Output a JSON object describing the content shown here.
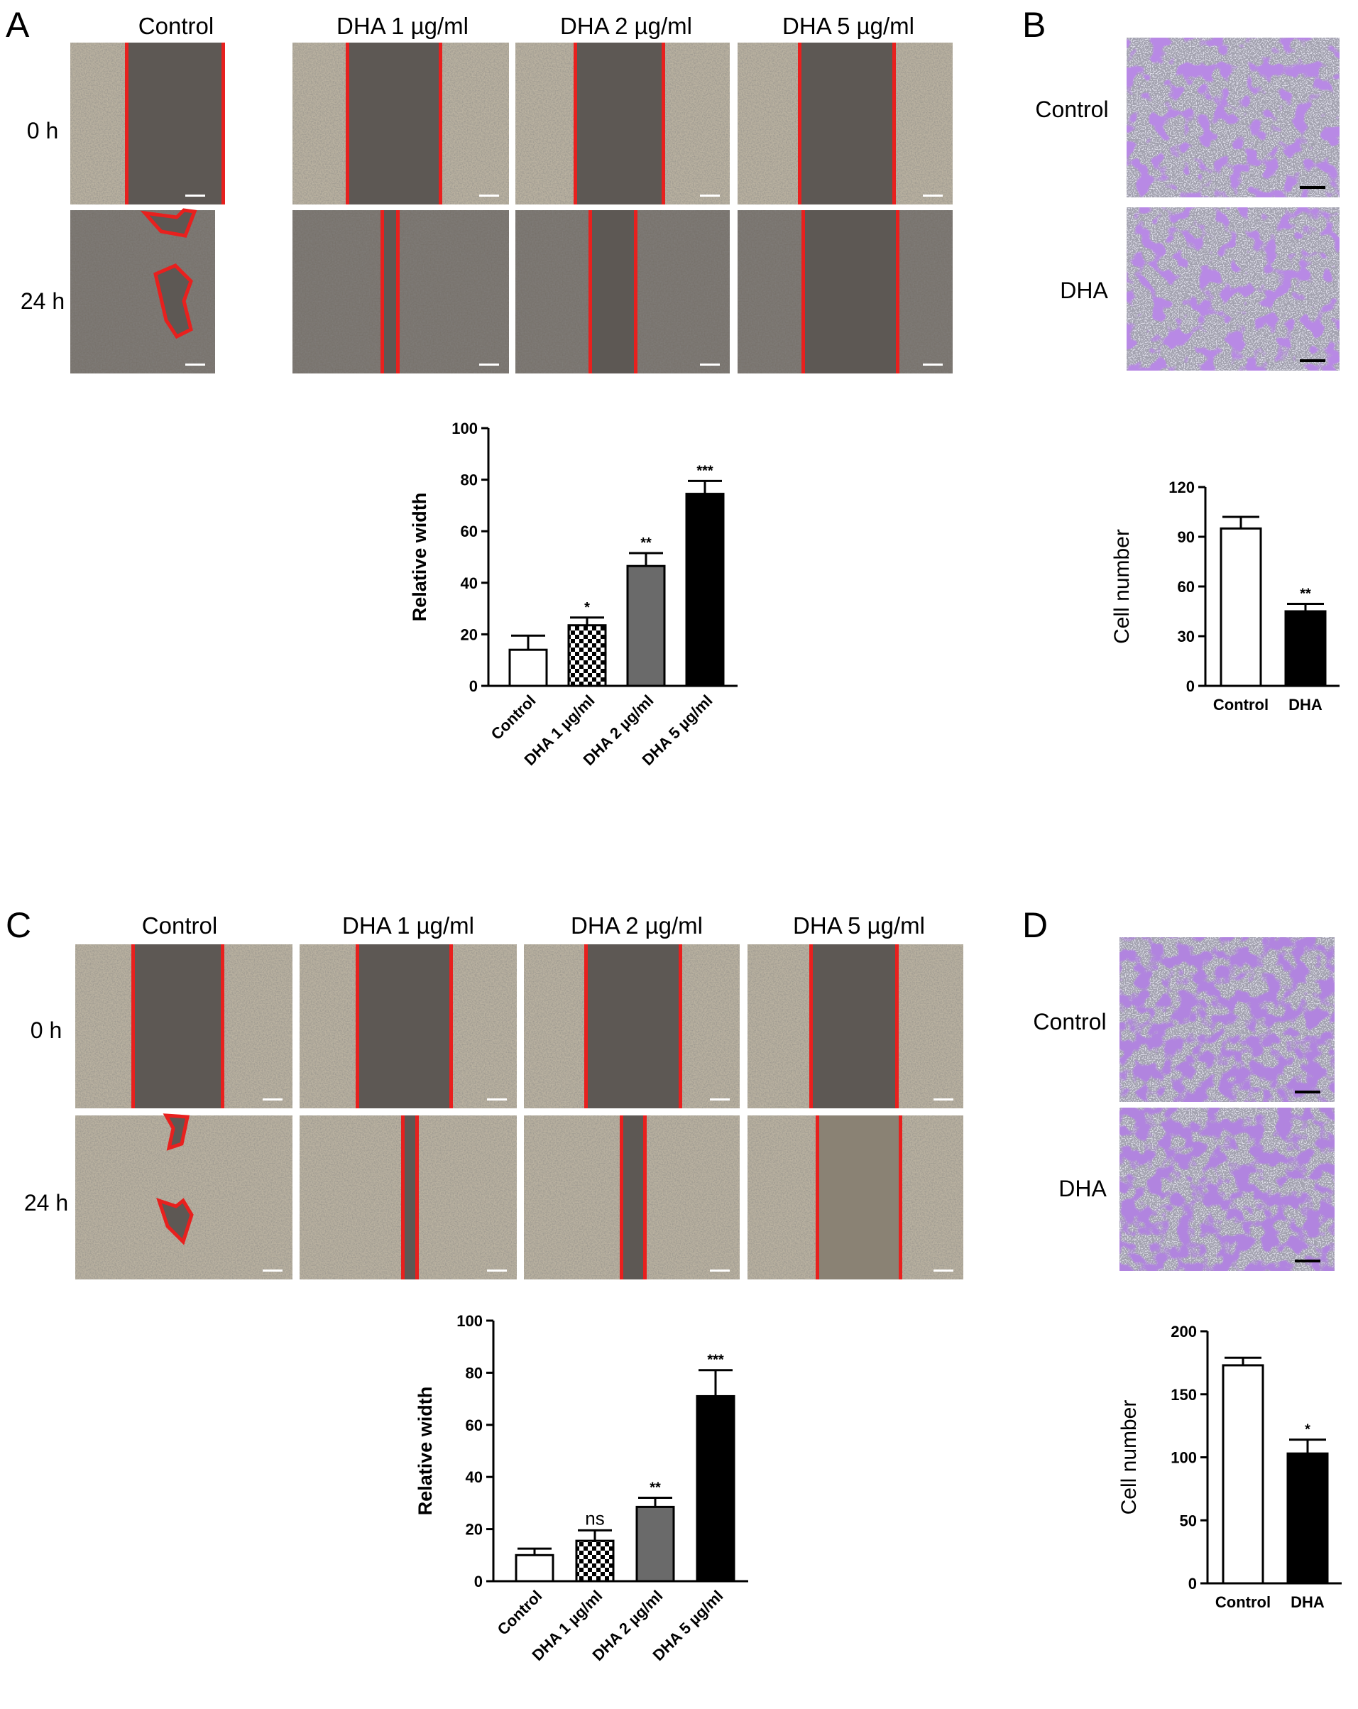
{
  "colors": {
    "scratch_red": "#e8201e",
    "phase_bg": "#b9b1a0",
    "phase_dense": "#77716a",
    "gap_dark": "#5d5854",
    "stain_bg": "#dcdbe8",
    "stain_cell": "#7b41c8",
    "bar_black": "#000000",
    "bar_gray": "#6a6a6a"
  },
  "panels": {
    "A": {
      "letter": "A",
      "columns": [
        "Control",
        "DHA 1 µg/ml",
        "DHA 2 µg/ml",
        "DHA 5 µg/ml"
      ],
      "rows": [
        "0 h",
        "24 h"
      ]
    },
    "B": {
      "letter": "B",
      "rows": [
        "Control",
        "DHA"
      ]
    },
    "C": {
      "letter": "C",
      "columns": [
        "Control",
        "DHA 1 µg/ml",
        "DHA 2 µg/ml",
        "DHA 5 µg/ml"
      ],
      "rows": [
        "0 h",
        "24 h"
      ]
    },
    "D": {
      "letter": "D",
      "rows": [
        "Control",
        "DHA"
      ]
    }
  },
  "chart_data": [
    {
      "id": "A-chart",
      "type": "bar",
      "ylabel": "Relative width",
      "ylim": [
        0,
        100
      ],
      "yticks": [
        "0",
        "20",
        "40",
        "60",
        "80",
        "100"
      ],
      "categories": [
        "Control",
        "DHA 1 µg/ml",
        "DHA 2 µg/ml",
        "DHA 5 µg/ml"
      ],
      "values": [
        14,
        23.5,
        46.5,
        74.5
      ],
      "errors": [
        5.5,
        3,
        5,
        5
      ],
      "significance": [
        "",
        "*",
        "**",
        "***"
      ],
      "fills": [
        "white",
        "checker",
        "gray",
        "black"
      ]
    },
    {
      "id": "B-chart",
      "type": "bar",
      "ylabel": "Cell number",
      "ylim": [
        0,
        120
      ],
      "yticks": [
        "0",
        "30",
        "60",
        "90",
        "120"
      ],
      "categories": [
        "Control",
        "DHA"
      ],
      "values": [
        95,
        45
      ],
      "errors": [
        7,
        4.5
      ],
      "significance": [
        "",
        "**"
      ],
      "fills": [
        "white",
        "black"
      ]
    },
    {
      "id": "C-chart",
      "type": "bar",
      "ylabel": "Relative width",
      "ylim": [
        0,
        100
      ],
      "yticks": [
        "0",
        "20",
        "40",
        "60",
        "80",
        "100"
      ],
      "categories": [
        "Control",
        "DHA 1 µg/ml",
        "DHA 2 µg/ml",
        "DHA 5 µg/ml"
      ],
      "values": [
        10,
        15.5,
        28.5,
        71
      ],
      "errors": [
        2.5,
        4,
        3.5,
        10
      ],
      "significance": [
        "",
        "ns",
        "**",
        "***"
      ],
      "fills": [
        "white",
        "checker",
        "gray",
        "black"
      ]
    },
    {
      "id": "D-chart",
      "type": "bar",
      "ylabel": "Cell number",
      "ylim": [
        0,
        200
      ],
      "yticks": [
        "0",
        "50",
        "100",
        "150",
        "200"
      ],
      "categories": [
        "Control",
        "DHA"
      ],
      "values": [
        173,
        103
      ],
      "errors": [
        6,
        11
      ],
      "significance": [
        "",
        "*"
      ],
      "fills": [
        "white",
        "black"
      ]
    }
  ]
}
